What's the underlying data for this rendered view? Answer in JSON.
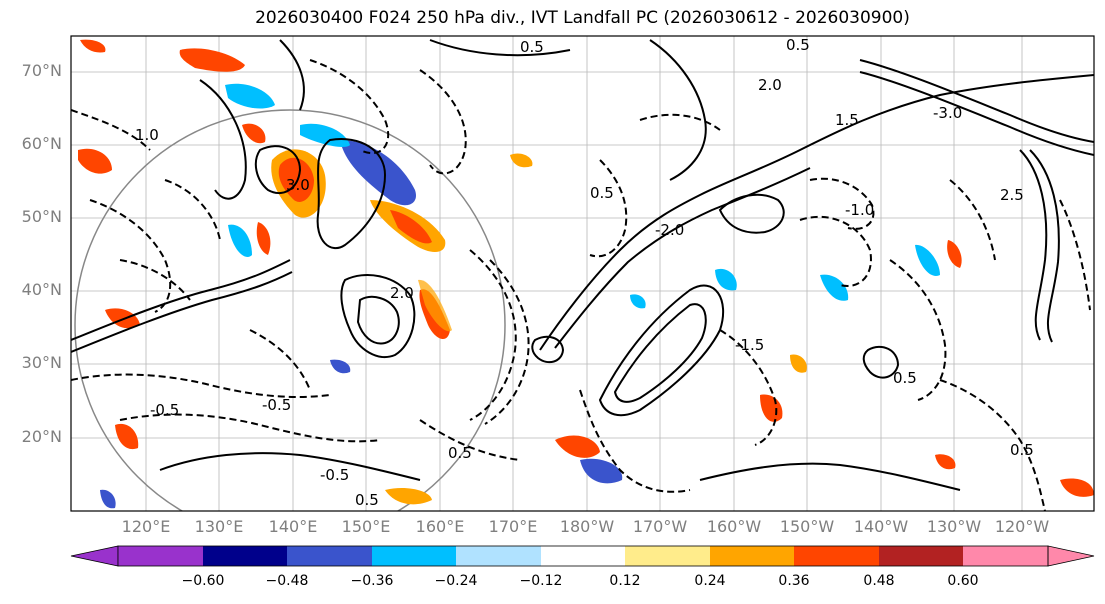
{
  "title": "2026030400 F024 250 hPa div., IVT Landfall PC (2026030612 - 2026030900)",
  "lat_labels": [
    "70°N",
    "60°N",
    "50°N",
    "40°N",
    "30°N",
    "20°N"
  ],
  "lon_labels": [
    "120°E",
    "130°E",
    "140°E",
    "150°E",
    "160°E",
    "170°E",
    "180°W",
    "170°W",
    "160°W",
    "150°W",
    "140°W",
    "130°W",
    "120°W"
  ],
  "colorbar": {
    "ticks": [
      "−0.60",
      "−0.48",
      "−0.36",
      "−0.24",
      "−0.12",
      "0.12",
      "0.24",
      "0.36",
      "0.48",
      "0.60"
    ],
    "colors": [
      "#9932cc",
      "#00008b",
      "#3a54cc",
      "#00bfff",
      "#b0e2ff",
      "#ffffff",
      "#ffec8b",
      "#ffa500",
      "#ff4500",
      "#b22222",
      "#ff88aa"
    ]
  },
  "contour_labels": [
    "-0.5",
    "0.5",
    "2.0",
    "-2.0",
    "3.0",
    "-3.0",
    "1.0",
    "-1.0",
    "1.5",
    "-1.5",
    "2.5"
  ]
}
